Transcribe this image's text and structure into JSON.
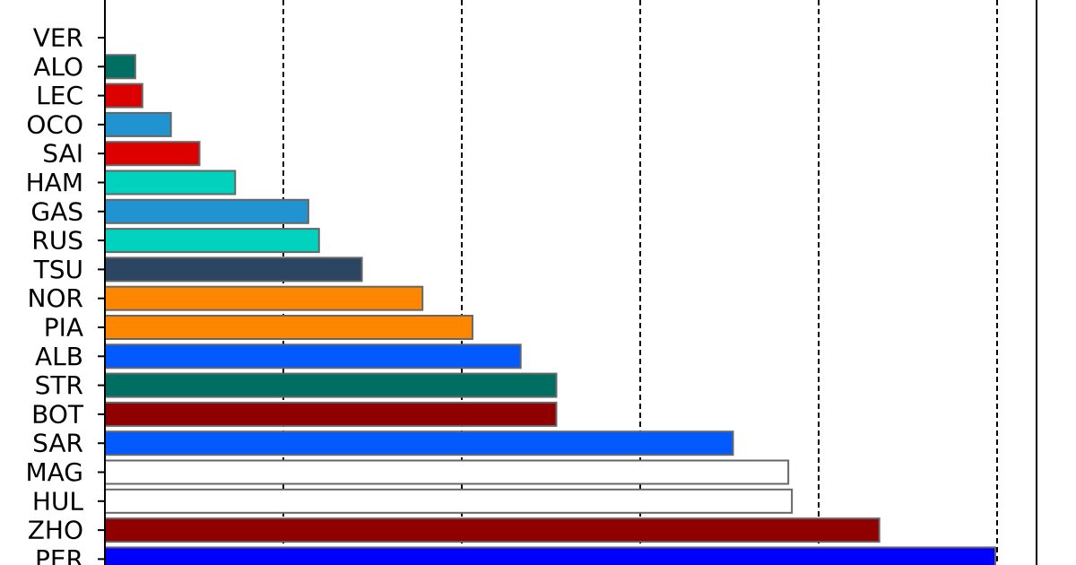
{
  "chart_data": {
    "type": "bar",
    "orientation": "horizontal",
    "categories": [
      "VER",
      "ALO",
      "LEC",
      "OCO",
      "SAI",
      "HAM",
      "GAS",
      "RUS",
      "TSU",
      "NOR",
      "PIA",
      "ALB",
      "STR",
      "BOT",
      "SAR",
      "MAG",
      "HUL",
      "ZHO",
      "PER"
    ],
    "values": [
      0,
      1.7,
      2.1,
      3.7,
      5.3,
      7.3,
      11.4,
      12.0,
      14.4,
      17.8,
      20.6,
      23.3,
      25.3,
      25.3,
      35.2,
      38.3,
      38.5,
      43.4,
      49.9
    ],
    "colors": [
      "#3671c6",
      "#006f62",
      "#dc0000",
      "#2293d1",
      "#dc0000",
      "#00d2be",
      "#2293d1",
      "#00d2be",
      "#2b4562",
      "#ff8700",
      "#ff8700",
      "#005aff",
      "#006f62",
      "#900000",
      "#005aff",
      "#ffffff",
      "#ffffff",
      "#900000",
      "#0000ff"
    ],
    "xlim": [
      0,
      52.2
    ],
    "grid": true,
    "grid_style": "dashed",
    "title": "",
    "xlabel": "",
    "ylabel": ""
  }
}
